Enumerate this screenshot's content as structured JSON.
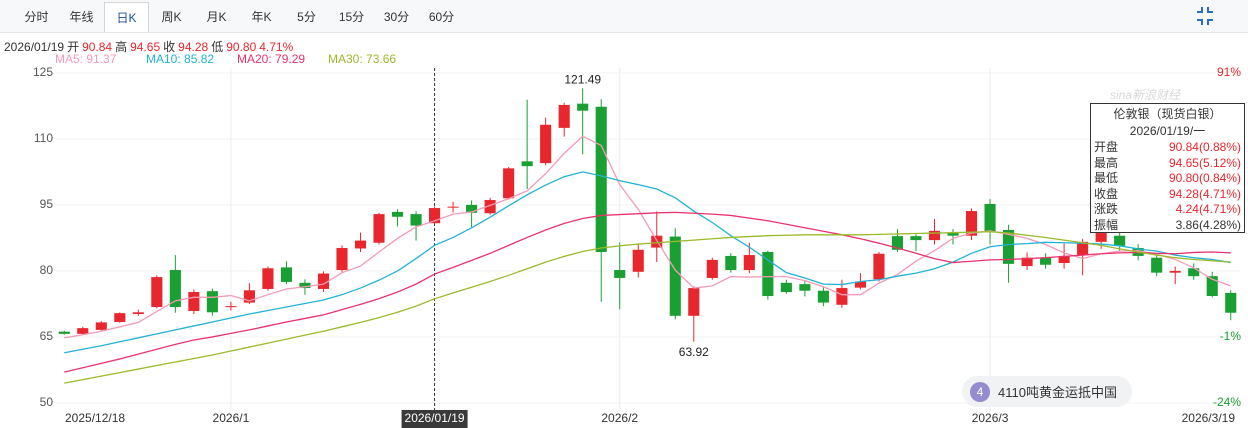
{
  "tabs": [
    {
      "label": "分时"
    },
    {
      "label": "年线"
    },
    {
      "label": "日K",
      "active": true
    },
    {
      "label": "周K"
    },
    {
      "label": "月K"
    },
    {
      "label": "年K"
    },
    {
      "label": "5分"
    },
    {
      "label": "15分"
    },
    {
      "label": "30分"
    },
    {
      "label": "60分"
    }
  ],
  "info": {
    "date": "2026/01/19",
    "items": [
      {
        "label": "开",
        "value": "90.84"
      },
      {
        "label": "高",
        "value": "94.65"
      },
      {
        "label": "收",
        "value": "94.28"
      },
      {
        "label": "低",
        "value": "90.80"
      }
    ],
    "change": "4.71%"
  },
  "tooltip": {
    "title": "伦敦银（现货白银）",
    "date": "2026/01/19/一",
    "rows": [
      {
        "label": "开盘",
        "value": "90.84(0.88%)",
        "color": "#e8262d"
      },
      {
        "label": "最高",
        "value": "94.65(5.12%)",
        "color": "#e8262d"
      },
      {
        "label": "最低",
        "value": "90.80(0.84%)",
        "color": "#e8262d"
      },
      {
        "label": "收盘",
        "value": "94.28(4.71%)",
        "color": "#e8262d"
      },
      {
        "label": "涨跌",
        "value": "4.24(4.71%)",
        "color": "#e8262d"
      },
      {
        "label": "振幅",
        "value": "3.86(4.28%)",
        "color": "#333333"
      }
    ]
  },
  "watermark": "sina新浪财经",
  "notification": {
    "badge": "4",
    "text": "4110吨黄金运抵中国"
  },
  "chart_data": {
    "type": "candlestick",
    "categories": [
      "2025/12/18",
      null,
      null,
      null,
      null,
      null,
      null,
      null,
      null,
      "2026/1",
      null,
      null,
      null,
      null,
      null,
      null,
      null,
      null,
      null,
      null,
      "2026/01/19",
      null,
      null,
      null,
      null,
      null,
      null,
      null,
      null,
      null,
      "2026/2",
      null,
      null,
      null,
      null,
      null,
      null,
      null,
      null,
      null,
      null,
      null,
      null,
      null,
      null,
      null,
      null,
      null,
      null,
      null,
      "2026/3",
      null,
      null,
      null,
      null,
      null,
      null,
      null,
      null,
      null,
      null,
      null,
      null,
      "2026/3/19"
    ],
    "open": [
      66.2,
      65.7,
      66.6,
      68.4,
      70.2,
      71.8,
      80.2,
      70.9,
      75.4,
      71.8,
      72.8,
      75.9,
      80.8,
      77.3,
      75.9,
      80.2,
      85.1,
      86.4,
      93.4,
      92.9,
      90.84,
      94.4,
      95.0,
      93.1,
      96.5,
      104.9,
      104.5,
      112.5,
      118.0,
      117.3,
      80.2,
      79.8,
      85.3,
      87.8,
      69.8,
      78.4,
      83.4,
      80.2,
      84.3,
      77.3,
      77.0,
      75.5,
      72.3,
      76.2,
      78.1,
      87.9,
      87.9,
      87.0,
      88.6,
      88.0,
      95.2,
      89.3,
      81.1,
      83.0,
      81.8,
      83.6,
      86.6,
      88.0,
      85.2,
      83.0,
      79.6,
      80.6,
      78.8,
      75.0
    ],
    "high": [
      66.4,
      67.3,
      68.6,
      70.6,
      71.2,
      79.0,
      83.6,
      75.8,
      76.0,
      73.0,
      77.2,
      81.0,
      82.2,
      78.1,
      79.9,
      85.8,
      88.7,
      93.2,
      94.0,
      93.6,
      94.65,
      95.7,
      96.0,
      96.6,
      103.6,
      118.9,
      114.8,
      118.2,
      121.49,
      119.0,
      86.5,
      86.0,
      93.5,
      89.7,
      76.5,
      83.0,
      84.0,
      86.4,
      84.6,
      78.0,
      77.8,
      76.3,
      78.0,
      79.5,
      84.3,
      89.5,
      88.3,
      91.8,
      89.5,
      94.2,
      96.3,
      90.5,
      84.2,
      84.0,
      86.2,
      87.3,
      90.0,
      89.0,
      86.1,
      84.0,
      81.0,
      81.7,
      79.8,
      75.6
    ],
    "low": [
      65.5,
      65.5,
      66.4,
      68.2,
      69.8,
      71.5,
      70.5,
      70.2,
      69.8,
      71.0,
      72.5,
      75.5,
      77.0,
      74.6,
      75.2,
      79.8,
      84.3,
      86.0,
      90.1,
      86.9,
      90.8,
      93.3,
      89.9,
      92.8,
      96.2,
      98.6,
      104.0,
      110.5,
      106.5,
      73.0,
      71.3,
      78.5,
      82.0,
      69.0,
      63.92,
      78.0,
      79.6,
      79.5,
      73.5,
      74.8,
      74.2,
      72.0,
      71.6,
      75.8,
      77.6,
      84.3,
      84.5,
      86.0,
      86.0,
      87.0,
      86.0,
      77.3,
      80.2,
      80.5,
      80.5,
      79.0,
      85.0,
      84.5,
      82.4,
      78.8,
      77.0,
      78.0,
      74.0,
      68.8
    ],
    "close": [
      65.7,
      67.0,
      68.3,
      70.4,
      70.6,
      78.6,
      71.8,
      75.2,
      70.6,
      72.0,
      75.6,
      80.6,
      77.5,
      76.1,
      79.4,
      85.2,
      86.9,
      92.9,
      92.3,
      90.3,
      94.28,
      94.6,
      93.2,
      96.1,
      103.3,
      103.8,
      113.2,
      117.7,
      116.4,
      84.3,
      78.4,
      84.8,
      88.0,
      69.8,
      76.1,
      82.5,
      80.2,
      83.6,
      74.3,
      75.2,
      75.5,
      72.8,
      76.1,
      77.6,
      83.9,
      84.8,
      87.0,
      89.1,
      88.0,
      93.6,
      88.9,
      81.6,
      83.0,
      81.4,
      83.4,
      86.6,
      88.6,
      85.7,
      83.4,
      79.6,
      80.0,
      78.8,
      74.3,
      70.5
    ],
    "up_color": "#e8262d",
    "down_color": "#1aa032",
    "series": [
      {
        "name": "MA5: 91.37",
        "color": "#f59ab8",
        "values": [
          64.8,
          65.5,
          66.3,
          67.3,
          68.3,
          70.8,
          73.2,
          74.0,
          74.0,
          74.4,
          73.2,
          74.6,
          75.9,
          76.4,
          77.0,
          79.6,
          81.1,
          84.3,
          87.4,
          90.0,
          91.37,
          92.9,
          93.4,
          94.9,
          96.4,
          98.2,
          102.1,
          106.7,
          110.6,
          108.5,
          99.6,
          94.0,
          86.9,
          80.2,
          76.1,
          76.6,
          78.7,
          78.6,
          78.7,
          78.7,
          77.8,
          76.4,
          74.6,
          74.6,
          77.2,
          79.2,
          82.2,
          84.6,
          87.4,
          88.6,
          89.1,
          88.3,
          87.4,
          86.0,
          84.1,
          82.8,
          83.9,
          84.5,
          84.6,
          83.8,
          82.6,
          80.7,
          78.1,
          76.6
        ]
      },
      {
        "name": "MA10: 85.82",
        "color": "#21b3d6",
        "values": [
          61.4,
          62.2,
          63.0,
          63.9,
          64.8,
          65.7,
          66.6,
          67.5,
          68.4,
          69.3,
          70.2,
          71.0,
          71.8,
          72.6,
          73.4,
          74.6,
          76.1,
          77.9,
          80.0,
          82.8,
          85.82,
          87.6,
          89.8,
          92.2,
          94.8,
          97.3,
          99.5,
          101.4,
          102.5,
          101.6,
          100.5,
          99.6,
          98.6,
          96.6,
          93.6,
          91.0,
          88.0,
          85.4,
          82.5,
          79.6,
          78.4,
          77.0,
          76.9,
          77.6,
          78.0,
          78.8,
          79.5,
          80.5,
          82.0,
          84.0,
          85.5,
          86.0,
          86.2,
          86.5,
          86.4,
          86.3,
          86.1,
          85.7,
          85.0,
          84.5,
          83.6,
          83.0,
          82.6,
          81.9
        ]
      },
      {
        "name": "MA20: 79.29",
        "color": "#e8336d",
        "values": [
          57.0,
          58.0,
          59.0,
          60.0,
          61.1,
          62.2,
          63.3,
          64.3,
          65.0,
          65.8,
          66.6,
          67.5,
          68.4,
          69.2,
          70.0,
          71.2,
          72.4,
          73.7,
          75.2,
          77.0,
          79.29,
          80.8,
          82.4,
          84.0,
          85.8,
          87.6,
          89.3,
          90.8,
          91.9,
          92.6,
          92.8,
          93.0,
          93.2,
          93.3,
          93.1,
          92.9,
          92.6,
          92.0,
          91.4,
          90.6,
          89.8,
          89.0,
          88.2,
          87.3,
          86.3,
          85.2,
          84.0,
          82.8,
          81.9,
          82.2,
          82.5,
          82.6,
          82.8,
          83.0,
          83.3,
          83.6,
          83.9,
          84.1,
          84.2,
          84.0,
          83.9,
          84.2,
          84.3,
          84.1
        ]
      },
      {
        "name": "MA30: 73.66",
        "color": "#9bba2a",
        "values": [
          54.5,
          55.3,
          56.1,
          56.9,
          57.7,
          58.5,
          59.3,
          60.1,
          60.9,
          61.8,
          62.7,
          63.6,
          64.5,
          65.4,
          66.3,
          67.3,
          68.3,
          69.4,
          70.6,
          72.0,
          73.66,
          75.0,
          76.3,
          77.6,
          79.0,
          80.5,
          82.0,
          83.3,
          84.4,
          85.2,
          85.7,
          86.1,
          86.4,
          86.7,
          87.0,
          87.3,
          87.6,
          87.8,
          88.0,
          88.1,
          88.2,
          88.2,
          88.2,
          88.2,
          88.3,
          88.4,
          88.5,
          88.6,
          88.7,
          88.8,
          88.9,
          88.6,
          88.1,
          87.6,
          87.0,
          86.4,
          85.8,
          85.0,
          84.3,
          83.6,
          83.0,
          82.6,
          82.3,
          82.0
        ]
      }
    ],
    "ylim": [
      48.4,
      126.1
    ],
    "yticks": [
      50,
      65,
      80,
      95,
      110,
      125
    ],
    "y2lim": [
      -26.5,
      92.7
    ],
    "y2ticks": [
      {
        "value": 91,
        "label": "91%"
      },
      {
        "value": -1,
        "label": "-1%"
      },
      {
        "value": -24,
        "label": "-24%"
      }
    ],
    "grid": true
  }
}
